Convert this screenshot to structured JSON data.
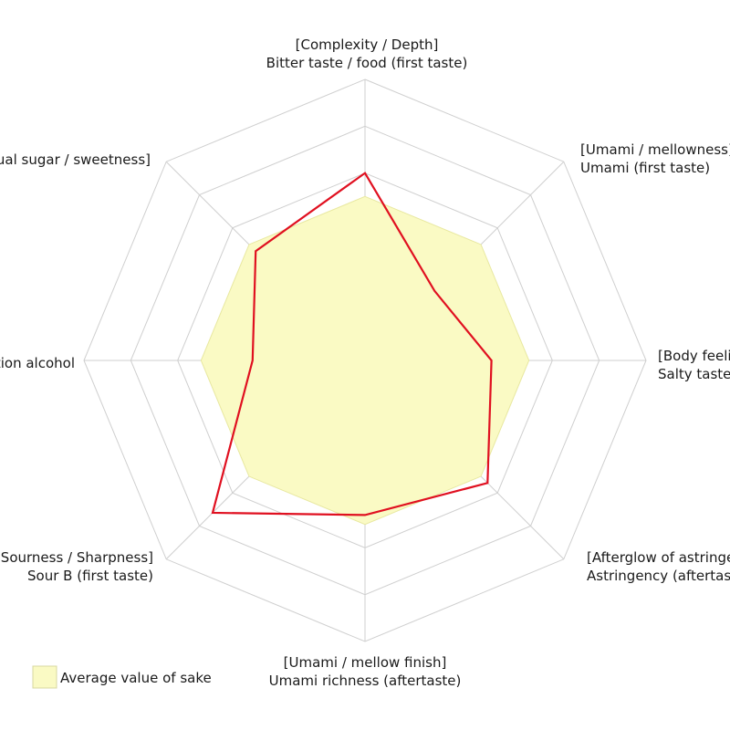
{
  "chart_data": {
    "type": "radar",
    "axes": [
      {
        "line1": "[Complexity / Depth]",
        "line2": "Bitter taste / food (first taste)"
      },
      {
        "line1": "[Umami / mellowness]",
        "line2": "Umami (first taste)"
      },
      {
        "line1": "[Body feeling]",
        "line2": "Salty taste"
      },
      {
        "line1": "[Afterglow of astringency]",
        "line2": "Astringency (aftertaste)"
      },
      {
        "line1": "[Umami / mellow finish]",
        "line2": "Umami richness (aftertaste)"
      },
      {
        "line1": "[Sourness / Sharpness]",
        "line2": "Sour B (first taste)"
      },
      {
        "line1": "Fermentation alcohol",
        "line2": ""
      },
      {
        "line1": "[Residual sugar / sweetness]",
        "line2": ""
      }
    ],
    "rings": 6,
    "rmax": 6,
    "series": [
      {
        "name": "Average value of sake",
        "values": [
          3.5,
          3.5,
          3.5,
          3.5,
          3.5,
          3.5,
          3.5,
          3.5
        ],
        "style": "fill",
        "color": "#fafac4"
      },
      {
        "values": [
          4.0,
          2.1,
          2.7,
          3.7,
          3.3,
          4.6,
          2.4,
          3.3
        ],
        "style": "line",
        "color": "#e01020"
      }
    ]
  }
}
